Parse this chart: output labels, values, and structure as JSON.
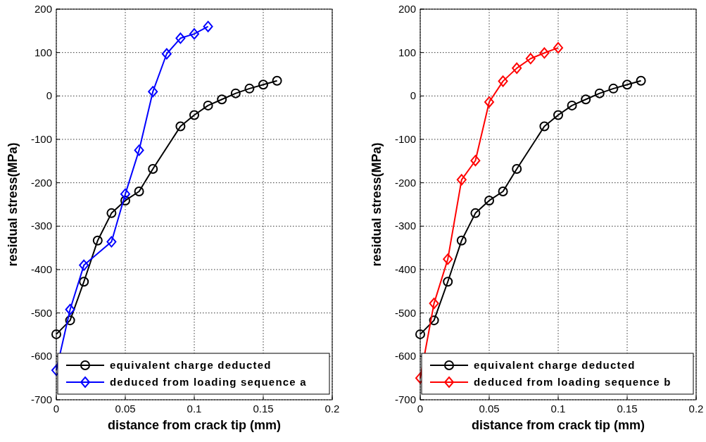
{
  "chart_data": [
    {
      "type": "line",
      "xlabel": "distance from crack tip (mm)",
      "ylabel": "residual stress(MPa)",
      "xlim": [
        0,
        0.2
      ],
      "xticks": [
        0,
        0.05,
        0.1,
        0.15,
        0.2
      ],
      "ylim": [
        -700,
        200
      ],
      "yticks": [
        -700,
        -600,
        -500,
        -400,
        -300,
        -200,
        -100,
        0,
        100,
        200
      ],
      "grid": true,
      "legend": "bottom",
      "series": [
        {
          "name": "equivalent charge deducted",
          "color": "#000000",
          "marker": "circle",
          "x": [
            0,
            0.01,
            0.02,
            0.03,
            0.04,
            0.05,
            0.06,
            0.07,
            0.09,
            0.1,
            0.11,
            0.12,
            0.13,
            0.14,
            0.15,
            0.16
          ],
          "values": [
            -549,
            -517,
            -428,
            -333,
            -270,
            -241,
            -220,
            -168,
            -70,
            -44,
            -22,
            -8,
            6,
            17,
            26,
            35
          ]
        },
        {
          "name": "deduced from loading sequence a",
          "color": "#0000ff",
          "marker": "diamond",
          "x": [
            0,
            0.01,
            0.02,
            0.04,
            0.05,
            0.06,
            0.07,
            0.08,
            0.09,
            0.1,
            0.11
          ],
          "values": [
            -632,
            -492,
            -390,
            -336,
            -226,
            -125,
            10,
            97,
            133,
            143,
            160
          ]
        }
      ]
    },
    {
      "type": "line",
      "xlabel": "distance from crack tip (mm)",
      "ylabel": "residual stress(MPa)",
      "xlim": [
        0,
        0.2
      ],
      "xticks": [
        0,
        0.05,
        0.1,
        0.15,
        0.2
      ],
      "ylim": [
        -700,
        200
      ],
      "yticks": [
        -700,
        -600,
        -500,
        -400,
        -300,
        -200,
        -100,
        0,
        100,
        200
      ],
      "grid": true,
      "legend": "bottom",
      "series": [
        {
          "name": "equivalent charge deducted",
          "color": "#000000",
          "marker": "circle",
          "x": [
            0,
            0.01,
            0.02,
            0.03,
            0.04,
            0.05,
            0.06,
            0.07,
            0.09,
            0.1,
            0.11,
            0.12,
            0.13,
            0.14,
            0.15,
            0.16
          ],
          "values": [
            -549,
            -517,
            -428,
            -333,
            -270,
            -241,
            -220,
            -168,
            -70,
            -44,
            -22,
            -8,
            6,
            17,
            26,
            35
          ]
        },
        {
          "name": "deduced from loading sequence b",
          "color": "#ff0000",
          "marker": "diamond",
          "x": [
            0,
            0.01,
            0.02,
            0.03,
            0.04,
            0.05,
            0.06,
            0.07,
            0.08,
            0.09,
            0.1
          ],
          "values": [
            -650,
            -478,
            -376,
            -193,
            -149,
            -14,
            34,
            64,
            86,
            99,
            111
          ]
        }
      ]
    }
  ]
}
